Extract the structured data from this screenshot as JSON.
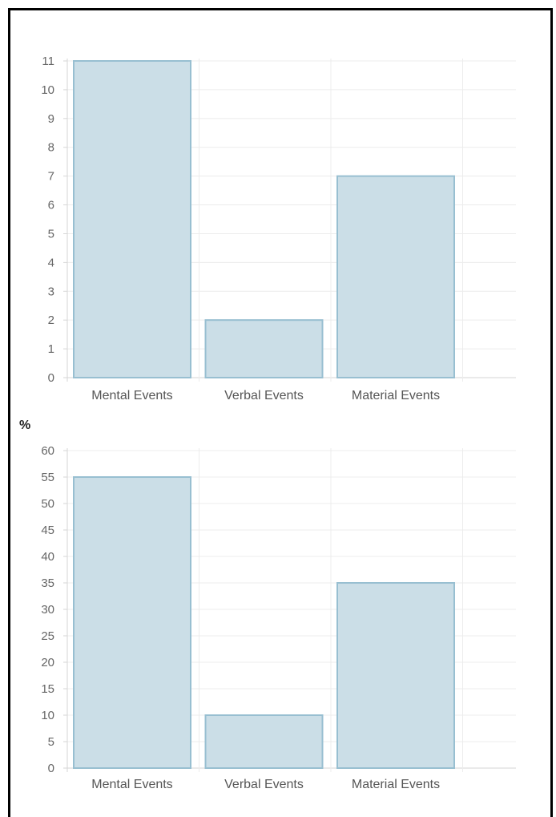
{
  "chart_data": [
    {
      "type": "bar",
      "categories": [
        "Mental Events",
        "Verbal Events",
        "Material Events"
      ],
      "values": [
        11,
        2,
        7
      ],
      "ylim": [
        0,
        11
      ],
      "yticks": [
        "0",
        "1",
        "2",
        "3",
        "4",
        "5",
        "6",
        "7",
        "8",
        "9",
        "10",
        "11"
      ],
      "ylabel": "",
      "grid": true,
      "legend": "none",
      "bar_fill": "#cbdee7",
      "bar_stroke": "#98bfd1"
    },
    {
      "type": "bar",
      "categories": [
        "Mental Events",
        "Verbal Events",
        "Material Events"
      ],
      "values": [
        55,
        10,
        35
      ],
      "ylim": [
        0,
        60
      ],
      "yticks": [
        "0",
        "5",
        "10",
        "15",
        "20",
        "25",
        "30",
        "35",
        "40",
        "45",
        "50",
        "55",
        "60"
      ],
      "ylabel": "%",
      "grid": true,
      "legend": "none",
      "bar_fill": "#cbdee7",
      "bar_stroke": "#98bfd1"
    }
  ]
}
